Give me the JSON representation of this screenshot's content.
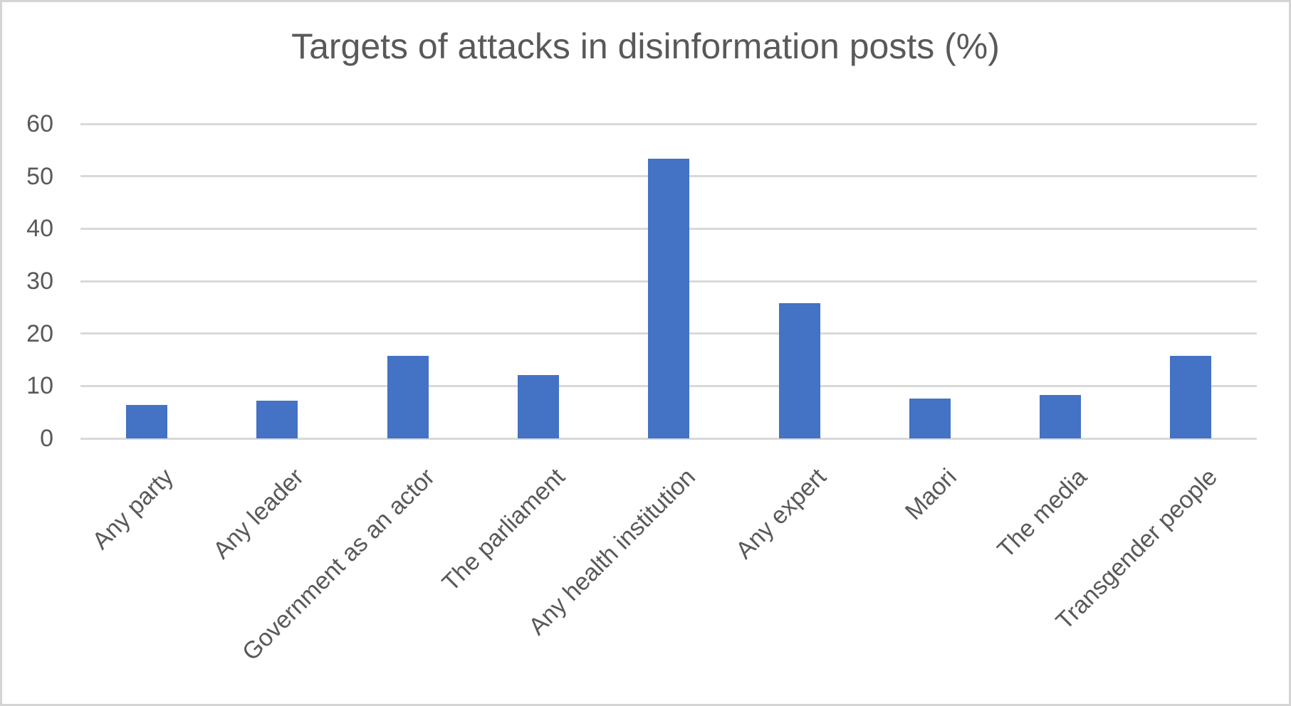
{
  "chart_data": {
    "type": "bar",
    "title": "Targets of attacks in disinformation posts (%)",
    "categories": [
      "Any party",
      "Any leader",
      "Government as an actor",
      "The parliament",
      "Any health institution",
      "Any expert",
      "Maori",
      "The media",
      "Transgender people"
    ],
    "values": [
      6.4,
      7.2,
      15.8,
      12.1,
      53.3,
      25.8,
      7.6,
      8.3,
      15.8
    ],
    "xlabel": "",
    "ylabel": "",
    "ylim": [
      0,
      60
    ],
    "yticks": [
      0,
      10,
      20,
      30,
      40,
      50,
      60
    ],
    "grid": true,
    "legend": false,
    "x_label_rotation_deg": 45,
    "colors": {
      "bar": "#4472C4",
      "gridline": "#D9D9D9",
      "text": "#595959",
      "background": "#FFFFFF",
      "frame_border": "#D4D4D4"
    }
  }
}
